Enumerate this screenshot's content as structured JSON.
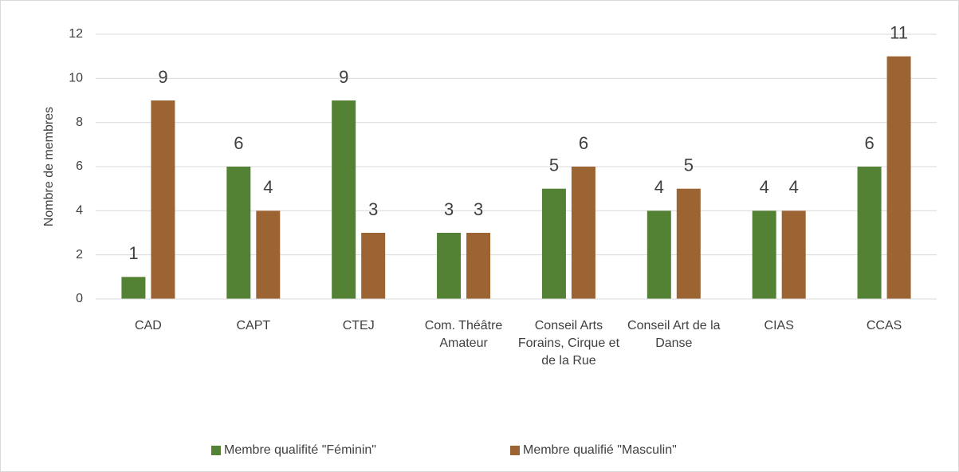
{
  "chart_data": {
    "type": "bar",
    "y_label": "Nombre de membres",
    "categories": [
      "CAD",
      "CAPT",
      "CTEJ",
      "Com. Théâtre Amateur",
      "Conseil Arts Forains, Cirque et de la Rue",
      "Conseil Art de la Danse",
      "CIAS",
      "CCAS"
    ],
    "series": [
      {
        "name": "Membre qualifité \"Féminin\"",
        "color": "#548235",
        "values": [
          1,
          6,
          9,
          3,
          5,
          4,
          4,
          6
        ]
      },
      {
        "name": "Membre qualifié \"Masculin\"",
        "color": "#9c6433",
        "values": [
          9,
          4,
          3,
          3,
          6,
          5,
          4,
          11
        ]
      }
    ],
    "ylim": [
      0,
      12
    ],
    "yticks": [
      0,
      2,
      4,
      6,
      8,
      10,
      12
    ],
    "grid": true,
    "legend": "bottom",
    "data_labels": true
  }
}
